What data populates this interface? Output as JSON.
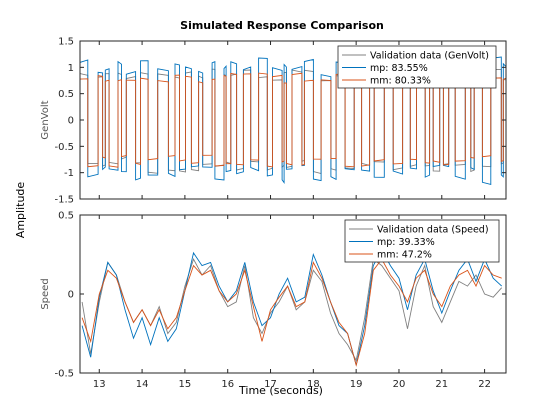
{
  "figure": {
    "title": "Simulated Response Comparison",
    "common_xlabel": "Time (seconds)",
    "common_ylabel": "Amplitude"
  },
  "chart_data": [
    {
      "type": "line",
      "ylabel": "GenVolt",
      "xlim": [
        12.55,
        22.5
      ],
      "ylim": [
        -1.5,
        1.5
      ],
      "x_ticks": [
        13,
        14,
        15,
        16,
        17,
        18,
        19,
        20,
        21,
        22
      ],
      "y_ticks": [
        -1.5,
        -1,
        -0.5,
        0,
        0.5,
        1,
        1.5
      ],
      "y_tick_labels": [
        "-1.5",
        "-1",
        "-0.5",
        "0",
        "0.5",
        "1",
        "1.5"
      ],
      "grid": false,
      "legend_position": "top-right",
      "series": [
        {
          "name": "Validation data (GenVolt)",
          "color": "#808080",
          "signal": "square",
          "amplitude": 0.9,
          "jitter": 0.08
        },
        {
          "name": "mp: 83.55%",
          "color": "#0072BD",
          "signal": "square",
          "amplitude": 1.05,
          "jitter": 0.12
        },
        {
          "name": "mm: 80.33%",
          "color": "#D95319",
          "signal": "square",
          "amplitude": 0.8,
          "jitter": 0.05
        }
      ]
    },
    {
      "type": "line",
      "ylabel": "Speed",
      "xlim": [
        12.55,
        22.5
      ],
      "ylim": [
        -0.5,
        0.5
      ],
      "x_ticks": [
        13,
        14,
        15,
        16,
        17,
        18,
        19,
        20,
        21,
        22
      ],
      "y_ticks": [
        -0.5,
        0,
        0.5
      ],
      "y_tick_labels": [
        "-0.5",
        "0",
        "0.5"
      ],
      "grid": false,
      "legend_position": "top-right",
      "series": [
        {
          "name": "Validation data (Speed)",
          "color": "#808080",
          "x": [
            12.6,
            12.8,
            13.0,
            13.2,
            13.4,
            13.6,
            13.8,
            14.0,
            14.2,
            14.4,
            14.6,
            14.8,
            15.0,
            15.2,
            15.4,
            15.6,
            15.8,
            16.0,
            16.2,
            16.4,
            16.6,
            16.8,
            17.0,
            17.2,
            17.4,
            17.6,
            17.8,
            18.0,
            18.2,
            18.4,
            18.6,
            18.8,
            19.0,
            19.2,
            19.4,
            19.6,
            19.8,
            20.0,
            20.2,
            20.4,
            20.6,
            20.8,
            21.0,
            21.2,
            21.4,
            21.6,
            21.8,
            22.0,
            22.2,
            22.4
          ],
          "values": [
            -0.05,
            -0.38,
            -0.05,
            0.2,
            0.12,
            -0.05,
            -0.18,
            -0.1,
            -0.2,
            -0.08,
            -0.25,
            -0.18,
            0.05,
            0.22,
            0.12,
            0.18,
            0.02,
            -0.08,
            -0.05,
            0.18,
            -0.15,
            -0.25,
            -0.12,
            -0.05,
            0.05,
            -0.1,
            -0.05,
            0.15,
            0.08,
            -0.12,
            -0.25,
            -0.32,
            -0.42,
            -0.15,
            0.22,
            0.18,
            0.1,
            0.02,
            -0.22,
            0.05,
            0.18,
            -0.08,
            -0.18,
            -0.05,
            0.08,
            0.05,
            0.12,
            0.0,
            -0.02,
            0.04
          ]
        },
        {
          "name": "mp: 39.33%",
          "color": "#0072BD",
          "x": [
            12.6,
            12.8,
            13.0,
            13.2,
            13.4,
            13.6,
            13.8,
            14.0,
            14.2,
            14.4,
            14.6,
            14.8,
            15.0,
            15.2,
            15.4,
            15.6,
            15.8,
            16.0,
            16.2,
            16.4,
            16.6,
            16.8,
            17.0,
            17.2,
            17.4,
            17.6,
            17.8,
            18.0,
            18.2,
            18.4,
            18.6,
            18.8,
            19.0,
            19.2,
            19.4,
            19.6,
            19.8,
            20.0,
            20.2,
            20.4,
            20.6,
            20.8,
            21.0,
            21.2,
            21.4,
            21.6,
            21.8,
            22.0,
            22.2,
            22.4
          ],
          "values": [
            -0.2,
            -0.4,
            -0.02,
            0.2,
            0.12,
            -0.1,
            -0.28,
            -0.15,
            -0.32,
            -0.15,
            -0.3,
            -0.22,
            0.02,
            0.26,
            0.18,
            0.2,
            0.05,
            -0.05,
            0.02,
            0.2,
            -0.05,
            -0.2,
            -0.15,
            0.0,
            0.1,
            -0.05,
            -0.02,
            0.25,
            0.12,
            -0.05,
            -0.2,
            -0.25,
            -0.45,
            -0.2,
            0.18,
            0.28,
            0.18,
            0.1,
            -0.1,
            0.12,
            0.22,
            0.02,
            -0.12,
            0.02,
            0.15,
            0.22,
            0.08,
            0.22,
            0.1,
            0.05
          ]
        },
        {
          "name": "mm: 47.2%",
          "color": "#D95319",
          "x": [
            12.6,
            12.8,
            13.0,
            13.2,
            13.4,
            13.6,
            13.8,
            14.0,
            14.2,
            14.4,
            14.6,
            14.8,
            15.0,
            15.2,
            15.4,
            15.6,
            15.8,
            16.0,
            16.2,
            16.4,
            16.6,
            16.8,
            17.0,
            17.2,
            17.4,
            17.6,
            17.8,
            18.0,
            18.2,
            18.4,
            18.6,
            18.8,
            19.0,
            19.2,
            19.4,
            19.6,
            19.8,
            20.0,
            20.2,
            20.4,
            20.6,
            20.8,
            21.0,
            21.2,
            21.4,
            21.6,
            21.8,
            22.0,
            22.2,
            22.4
          ],
          "values": [
            -0.15,
            -0.3,
            0.0,
            0.15,
            0.1,
            -0.05,
            -0.18,
            -0.1,
            -0.2,
            -0.1,
            -0.22,
            -0.15,
            0.02,
            0.18,
            0.12,
            0.15,
            0.02,
            -0.05,
            0.0,
            0.15,
            -0.08,
            -0.3,
            -0.1,
            -0.02,
            0.05,
            -0.08,
            -0.05,
            0.2,
            0.1,
            -0.05,
            -0.18,
            -0.25,
            -0.45,
            -0.25,
            0.15,
            0.22,
            0.12,
            0.05,
            -0.05,
            0.1,
            0.15,
            0.0,
            -0.08,
            0.05,
            0.12,
            0.15,
            0.05,
            0.18,
            0.12,
            0.1
          ]
        }
      ]
    }
  ]
}
